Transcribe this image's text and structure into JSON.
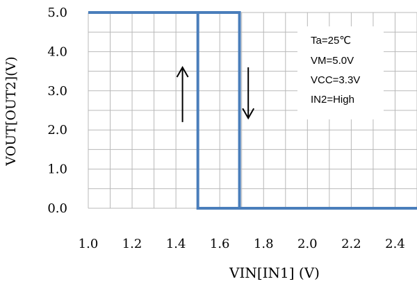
{
  "chart_data": {
    "type": "line",
    "xlabel": "VIN[IN1] (V)",
    "ylabel": "VOUT[OUT2](V)",
    "xlim": [
      1.0,
      2.5
    ],
    "ylim": [
      0.0,
      5.0
    ],
    "x_ticks": [
      "1.0",
      "1.2",
      "1.4",
      "1.6",
      "1.8",
      "2.0",
      "2.2",
      "2.4"
    ],
    "y_ticks": [
      "0.0",
      "1.0",
      "2.0",
      "3.0",
      "4.0",
      "5.0"
    ],
    "grid": true,
    "annotations": [
      "Ta=25℃",
      "VM=5.0V",
      "VCC=3.3V",
      "IN2=High"
    ],
    "arrows": [
      {
        "x": 1.43,
        "y_from": 2.2,
        "y_to": 3.6,
        "direction": "up"
      },
      {
        "x": 1.73,
        "y_from": 3.6,
        "y_to": 2.3,
        "direction": "down"
      }
    ],
    "series": [
      {
        "color": "#4a7ebb",
        "x": [
          1.0,
          1.5,
          1.5,
          2.5
        ],
        "y": [
          5.0,
          5.0,
          0.0,
          0.0
        ]
      },
      {
        "color": "#4a7ebb",
        "x": [
          1.0,
          1.69,
          1.69,
          2.5
        ],
        "y": [
          5.0,
          5.0,
          0.0,
          0.0
        ]
      }
    ]
  }
}
